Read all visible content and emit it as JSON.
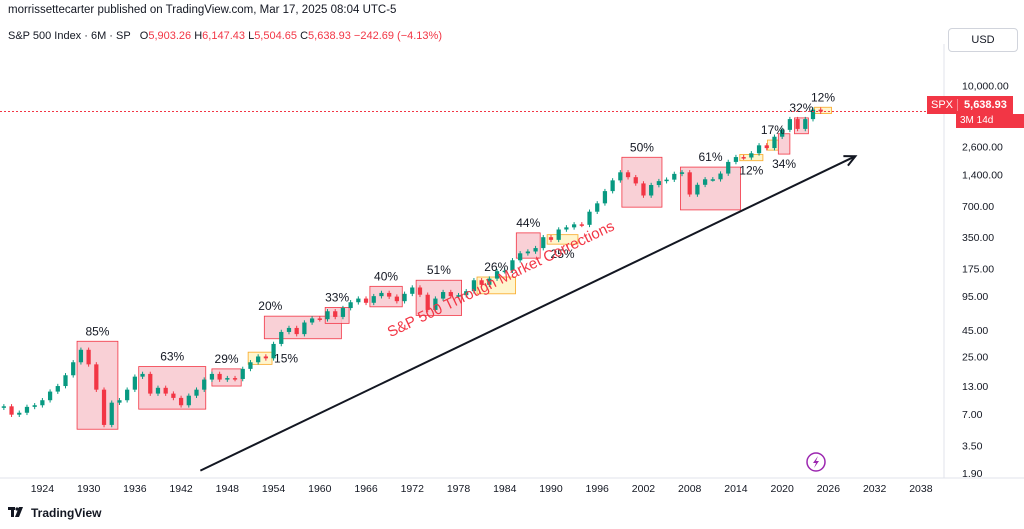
{
  "header": {
    "publisher": "morrissettecarter published on TradingView.com, Mar 17, 2025 08:04 UTC-5"
  },
  "legend": {
    "symbol": "S&P 500 Index · 6M · SP",
    "open_label": "O",
    "open": "5,903.26",
    "high_label": "H",
    "high": "6,147.43",
    "low_label": "L",
    "low": "5,504.65",
    "close_label": "C",
    "close": "5,638.93",
    "change": "−242.69 (−4.13%)"
  },
  "currency_button": "USD",
  "price_badge": {
    "symbol": "SPX",
    "price": "5,638.93",
    "timer": "3M 14d"
  },
  "colors": {
    "up": "#089981",
    "down": "#f23645",
    "pink_box": "#f8c8cf",
    "yellow_box": "#fff3c4",
    "arrow": "#131722",
    "accent": "#9c27b0"
  },
  "footer": {
    "brand": "TradingView"
  },
  "chart_data": {
    "type": "candlestick",
    "title": "S&P 500 Index · 6M · SP",
    "annotation": "S&P 500 Through Market Corrections",
    "y_scale": "log",
    "y_ticks": [
      "1.90",
      "3.50",
      "7.00",
      "13.00",
      "25.00",
      "45.00",
      "95.00",
      "175.00",
      "350.00",
      "700.00",
      "1,400.00",
      "2,600.00",
      "10,000.00"
    ],
    "x_ticks": [
      "1924",
      "1930",
      "1936",
      "1942",
      "1948",
      "1954",
      "1960",
      "1966",
      "1972",
      "1978",
      "1984",
      "1990",
      "1996",
      "2002",
      "2008",
      "2014",
      "2020",
      "2026",
      "2032",
      "2038"
    ],
    "x_range": [
      1918.5,
      2041
    ],
    "y_range": [
      1.7,
      22000
    ],
    "series": [
      {
        "x": 1919,
        "v": 8.3
      },
      {
        "x": 1920,
        "v": 6.9
      },
      {
        "x": 1921,
        "v": 7.2
      },
      {
        "x": 1922,
        "v": 8.2
      },
      {
        "x": 1923,
        "v": 8.5
      },
      {
        "x": 1924,
        "v": 9.5
      },
      {
        "x": 1925,
        "v": 11.5
      },
      {
        "x": 1926,
        "v": 13.0
      },
      {
        "x": 1927,
        "v": 16.5
      },
      {
        "x": 1928,
        "v": 22
      },
      {
        "x": 1929,
        "v": 29
      },
      {
        "x": 1930,
        "v": 21
      },
      {
        "x": 1931,
        "v": 12
      },
      {
        "x": 1932,
        "v": 5.5
      },
      {
        "x": 1933,
        "v": 9
      },
      {
        "x": 1934,
        "v": 9.5
      },
      {
        "x": 1935,
        "v": 12
      },
      {
        "x": 1936,
        "v": 16
      },
      {
        "x": 1937,
        "v": 17
      },
      {
        "x": 1938,
        "v": 11
      },
      {
        "x": 1939,
        "v": 12.5
      },
      {
        "x": 1940,
        "v": 11
      },
      {
        "x": 1941,
        "v": 10
      },
      {
        "x": 1942,
        "v": 8.5
      },
      {
        "x": 1943,
        "v": 10.5
      },
      {
        "x": 1944,
        "v": 12
      },
      {
        "x": 1945,
        "v": 15
      },
      {
        "x": 1946,
        "v": 17
      },
      {
        "x": 1947,
        "v": 15
      },
      {
        "x": 1948,
        "v": 15.5
      },
      {
        "x": 1949,
        "v": 15.2
      },
      {
        "x": 1950,
        "v": 19
      },
      {
        "x": 1951,
        "v": 22
      },
      {
        "x": 1952,
        "v": 25
      },
      {
        "x": 1953,
        "v": 24
      },
      {
        "x": 1954,
        "v": 33
      },
      {
        "x": 1955,
        "v": 43
      },
      {
        "x": 1956,
        "v": 47
      },
      {
        "x": 1957,
        "v": 41
      },
      {
        "x": 1958,
        "v": 53
      },
      {
        "x": 1959,
        "v": 58
      },
      {
        "x": 1960,
        "v": 57
      },
      {
        "x": 1961,
        "v": 68
      },
      {
        "x": 1962,
        "v": 60
      },
      {
        "x": 1963,
        "v": 73
      },
      {
        "x": 1964,
        "v": 83
      },
      {
        "x": 1965,
        "v": 90
      },
      {
        "x": 1966,
        "v": 82
      },
      {
        "x": 1967,
        "v": 95
      },
      {
        "x": 1968,
        "v": 102
      },
      {
        "x": 1969,
        "v": 94
      },
      {
        "x": 1970,
        "v": 85
      },
      {
        "x": 1971,
        "v": 100
      },
      {
        "x": 1972,
        "v": 115
      },
      {
        "x": 1973,
        "v": 98
      },
      {
        "x": 1974,
        "v": 70
      },
      {
        "x": 1975,
        "v": 90
      },
      {
        "x": 1976,
        "v": 104
      },
      {
        "x": 1977,
        "v": 95
      },
      {
        "x": 1978,
        "v": 97
      },
      {
        "x": 1979,
        "v": 106
      },
      {
        "x": 1980,
        "v": 135
      },
      {
        "x": 1981,
        "v": 122
      },
      {
        "x": 1982,
        "v": 140
      },
      {
        "x": 1983,
        "v": 165
      },
      {
        "x": 1984,
        "v": 167
      },
      {
        "x": 1985,
        "v": 210
      },
      {
        "x": 1986,
        "v": 245
      },
      {
        "x": 1987,
        "v": 255
      },
      {
        "x": 1988,
        "v": 275
      },
      {
        "x": 1989,
        "v": 350
      },
      {
        "x": 1990,
        "v": 330
      },
      {
        "x": 1991,
        "v": 415
      },
      {
        "x": 1992,
        "v": 435
      },
      {
        "x": 1993,
        "v": 465
      },
      {
        "x": 1994,
        "v": 460
      },
      {
        "x": 1995,
        "v": 615
      },
      {
        "x": 1996,
        "v": 740
      },
      {
        "x": 1997,
        "v": 970
      },
      {
        "x": 1998,
        "v": 1230
      },
      {
        "x": 1999,
        "v": 1470
      },
      {
        "x": 2000,
        "v": 1320
      },
      {
        "x": 2001,
        "v": 1150
      },
      {
        "x": 2002,
        "v": 880
      },
      {
        "x": 2003,
        "v": 1110
      },
      {
        "x": 2004,
        "v": 1210
      },
      {
        "x": 2005,
        "v": 1250
      },
      {
        "x": 2006,
        "v": 1420
      },
      {
        "x": 2007,
        "v": 1470
      },
      {
        "x": 2008,
        "v": 900
      },
      {
        "x": 2009,
        "v": 1115
      },
      {
        "x": 2010,
        "v": 1260
      },
      {
        "x": 2011,
        "v": 1260
      },
      {
        "x": 2012,
        "v": 1430
      },
      {
        "x": 2013,
        "v": 1850
      },
      {
        "x": 2014,
        "v": 2060
      },
      {
        "x": 2015,
        "v": 2040
      },
      {
        "x": 2016,
        "v": 2240
      },
      {
        "x": 2017,
        "v": 2670
      },
      {
        "x": 2018,
        "v": 2510
      },
      {
        "x": 2019,
        "v": 3230
      },
      {
        "x": 2020,
        "v": 3760
      },
      {
        "x": 2021,
        "v": 4770
      },
      {
        "x": 2022,
        "v": 3840
      },
      {
        "x": 2023,
        "v": 4770
      },
      {
        "x": 2024,
        "v": 5880
      },
      {
        "x": 2025,
        "v": 5640
      }
    ],
    "corrections": [
      {
        "label": "85%",
        "type": "pink",
        "x0": 1928.5,
        "x1": 1933.8,
        "y0": 5.0,
        "y1": 35,
        "label_pos": "above"
      },
      {
        "label": "63%",
        "type": "pink",
        "x0": 1936.5,
        "x1": 1945.2,
        "y0": 7.8,
        "y1": 20,
        "label_pos": "above"
      },
      {
        "label": "29%",
        "type": "pink",
        "x0": 1946.0,
        "x1": 1949.8,
        "y0": 13.0,
        "y1": 19,
        "label_pos": "above"
      },
      {
        "label": "15%",
        "type": "yellow",
        "x0": 1950.7,
        "x1": 1953.8,
        "y0": 21,
        "y1": 27.5,
        "label_pos": "right"
      },
      {
        "label": "20%",
        "type": "pink",
        "x0": 1952.8,
        "x1": 1962.8,
        "y0": 37,
        "y1": 61,
        "label_pos": "above-left"
      },
      {
        "label": "33%",
        "type": "pink",
        "x0": 1960.7,
        "x1": 1963.8,
        "y0": 52,
        "y1": 74,
        "label_pos": "above"
      },
      {
        "label": "40%",
        "type": "pink",
        "x0": 1966.5,
        "x1": 1970.7,
        "y0": 75,
        "y1": 118,
        "label_pos": "above"
      },
      {
        "label": "51%",
        "type": "pink",
        "x0": 1972.5,
        "x1": 1978.4,
        "y0": 62,
        "y1": 135,
        "label_pos": "above"
      },
      {
        "label": "26%",
        "type": "yellow",
        "x0": 1980.4,
        "x1": 1985.4,
        "y0": 100,
        "y1": 145,
        "label_pos": "above"
      },
      {
        "label": "44%",
        "type": "pink",
        "x0": 1985.5,
        "x1": 1988.6,
        "y0": 220,
        "y1": 385,
        "label_pos": "above"
      },
      {
        "label": "25%",
        "type": "yellow",
        "x0": 1989.5,
        "x1": 1993.5,
        "y0": 300,
        "y1": 370,
        "label_pos": "below"
      },
      {
        "label": "50%",
        "type": "pink",
        "x0": 1999.2,
        "x1": 2004.4,
        "y0": 680,
        "y1": 2050,
        "label_pos": "above"
      },
      {
        "label": "61%",
        "type": "pink",
        "x0": 2006.8,
        "x1": 2014.6,
        "y0": 640,
        "y1": 1650,
        "label_pos": "above"
      },
      {
        "label": "12%",
        "type": "yellow",
        "x0": 2014.5,
        "x1": 2017.5,
        "y0": 1900,
        "y1": 2180,
        "label_pos": "below"
      },
      {
        "label": "17%",
        "type": "yellow",
        "x0": 2018.1,
        "x1": 2019.5,
        "y0": 2400,
        "y1": 3000,
        "label_pos": "above"
      },
      {
        "label": "34%",
        "type": "pink",
        "x0": 2019.5,
        "x1": 2021.0,
        "y0": 2200,
        "y1": 3450,
        "label_pos": "below"
      },
      {
        "label": "32%",
        "type": "pink",
        "x0": 2021.6,
        "x1": 2023.4,
        "y0": 3450,
        "y1": 4900,
        "label_pos": "above"
      },
      {
        "label": "12%",
        "type": "yellow",
        "x0": 2024.2,
        "x1": 2026.4,
        "y0": 5400,
        "y1": 6200,
        "label_pos": "above"
      }
    ],
    "trend_arrow": {
      "from": {
        "x": 1944.5,
        "y": 2.0
      },
      "to": {
        "x": 2029.5,
        "y": 2100
      }
    }
  }
}
